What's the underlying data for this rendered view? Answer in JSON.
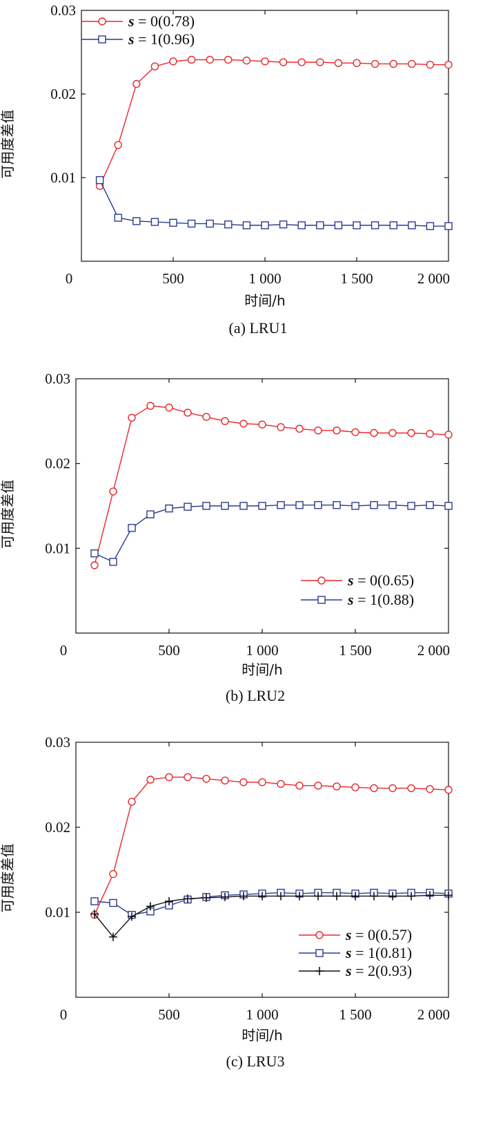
{
  "chart_data": [
    {
      "type": "line",
      "caption": "(a) LRU1",
      "xlabel": "时间/h",
      "ylabel": "可用度差值",
      "xlim": [
        0,
        2000
      ],
      "ylim": [
        0,
        0.03
      ],
      "xticks": [
        {
          "value": 0,
          "label": "0"
        },
        {
          "value": 500,
          "label": "500"
        },
        {
          "value": 1000,
          "label": "1 000"
        },
        {
          "value": 1500,
          "label": "1 500"
        },
        {
          "value": 2000,
          "label": "2 000"
        }
      ],
      "yticks": [
        {
          "value": 0.01,
          "label": "0.01"
        },
        {
          "value": 0.02,
          "label": "0.02"
        },
        {
          "value": 0.03,
          "label": "0.03"
        }
      ],
      "legend_position": "top-left",
      "grid": false,
      "x": [
        100,
        200,
        300,
        400,
        500,
        600,
        700,
        800,
        900,
        1000,
        1100,
        1200,
        1300,
        1400,
        1500,
        1600,
        1700,
        1800,
        1900,
        2000
      ],
      "series": [
        {
          "name": "s = 0(0.78)",
          "var": "s",
          "eq": " = 0(0.78)",
          "color": "#e8262a",
          "marker": "circle",
          "values": [
            0.009,
            0.0139,
            0.0212,
            0.0233,
            0.0239,
            0.0241,
            0.0241,
            0.0241,
            0.024,
            0.0239,
            0.0238,
            0.0238,
            0.0238,
            0.0237,
            0.0237,
            0.0236,
            0.0236,
            0.0236,
            0.0235,
            0.0235
          ]
        },
        {
          "name": "s = 1(0.96)",
          "var": "s",
          "eq": " = 1(0.96)",
          "color": "#2b3a8f",
          "marker": "square",
          "values": [
            0.0097,
            0.0052,
            0.0048,
            0.0047,
            0.0046,
            0.0045,
            0.0045,
            0.0044,
            0.0043,
            0.0043,
            0.0044,
            0.0043,
            0.0043,
            0.0043,
            0.0043,
            0.0043,
            0.0043,
            0.0043,
            0.0042,
            0.0042
          ]
        }
      ]
    },
    {
      "type": "line",
      "caption": "(b) LRU2",
      "xlabel": "时间/h",
      "ylabel": "可用度差值",
      "xlim": [
        0,
        2000
      ],
      "ylim": [
        0,
        0.03
      ],
      "xticks": [
        {
          "value": 0,
          "label": "0"
        },
        {
          "value": 500,
          "label": "500"
        },
        {
          "value": 1000,
          "label": "1 000"
        },
        {
          "value": 1500,
          "label": "1 500"
        },
        {
          "value": 2000,
          "label": "2 000"
        }
      ],
      "yticks": [
        {
          "value": 0.01,
          "label": "0.01"
        },
        {
          "value": 0.02,
          "label": "0.02"
        },
        {
          "value": 0.03,
          "label": "0.03"
        }
      ],
      "legend_position": "bottom-right",
      "grid": false,
      "x": [
        100,
        200,
        300,
        400,
        500,
        600,
        700,
        800,
        900,
        1000,
        1100,
        1200,
        1300,
        1400,
        1500,
        1600,
        1700,
        1800,
        1900,
        2000
      ],
      "series": [
        {
          "name": "s = 0(0.65)",
          "var": "s",
          "eq": " = 0(0.65)",
          "color": "#e8262a",
          "marker": "circle",
          "values": [
            0.008,
            0.0167,
            0.0254,
            0.0268,
            0.0266,
            0.026,
            0.0255,
            0.025,
            0.0247,
            0.0246,
            0.0243,
            0.0241,
            0.0239,
            0.0239,
            0.0237,
            0.0236,
            0.0236,
            0.0236,
            0.0235,
            0.0234
          ]
        },
        {
          "name": "s = 1(0.88)",
          "var": "s",
          "eq": " = 1(0.88)",
          "color": "#2b3a8f",
          "marker": "square",
          "values": [
            0.0094,
            0.0084,
            0.0124,
            0.014,
            0.0147,
            0.0149,
            0.015,
            0.015,
            0.015,
            0.015,
            0.0151,
            0.0151,
            0.0151,
            0.0151,
            0.015,
            0.0151,
            0.0151,
            0.015,
            0.0151,
            0.015
          ]
        }
      ]
    },
    {
      "type": "line",
      "caption": "(c) LRU3",
      "xlabel": "时间/h",
      "ylabel": "可用度差值",
      "xlim": [
        0,
        2000
      ],
      "ylim": [
        0,
        0.03
      ],
      "xticks": [
        {
          "value": 0,
          "label": "0"
        },
        {
          "value": 500,
          "label": "500"
        },
        {
          "value": 1000,
          "label": "1 000"
        },
        {
          "value": 1500,
          "label": "1 500"
        },
        {
          "value": 2000,
          "label": "2 000"
        }
      ],
      "yticks": [
        {
          "value": 0.01,
          "label": "0.01"
        },
        {
          "value": 0.02,
          "label": "0.02"
        },
        {
          "value": 0.03,
          "label": "0.03"
        }
      ],
      "legend_position": "bottom-right",
      "grid": false,
      "x": [
        100,
        200,
        300,
        400,
        500,
        600,
        700,
        800,
        900,
        1000,
        1100,
        1200,
        1300,
        1400,
        1500,
        1600,
        1700,
        1800,
        1900,
        2000
      ],
      "series": [
        {
          "name": "s = 0(0.57)",
          "var": "s",
          "eq": " = 0(0.57)",
          "color": "#e8262a",
          "marker": "circle",
          "values": [
            0.0097,
            0.0145,
            0.023,
            0.0256,
            0.0259,
            0.0259,
            0.0257,
            0.0255,
            0.0253,
            0.0253,
            0.0251,
            0.0249,
            0.0249,
            0.0248,
            0.0247,
            0.0246,
            0.0246,
            0.0246,
            0.0245,
            0.0244
          ]
        },
        {
          "name": "s = 1(0.81)",
          "var": "s",
          "eq": " = 1(0.81)",
          "color": "#2b3a8f",
          "marker": "square",
          "values": [
            0.0113,
            0.0111,
            0.0097,
            0.0101,
            0.0108,
            0.0115,
            0.0118,
            0.012,
            0.0121,
            0.0122,
            0.0123,
            0.0122,
            0.0123,
            0.0123,
            0.0122,
            0.0123,
            0.0122,
            0.0123,
            0.0123,
            0.0122
          ]
        },
        {
          "name": "s = 2(0.93)",
          "var": "s",
          "eq": " = 2(0.93)",
          "color": "#111111",
          "marker": "plus",
          "values": [
            0.0098,
            0.0071,
            0.0095,
            0.0107,
            0.0113,
            0.0116,
            0.0117,
            0.0118,
            0.0119,
            0.0119,
            0.0119,
            0.0119,
            0.0119,
            0.0119,
            0.0119,
            0.0119,
            0.0119,
            0.0119,
            0.012,
            0.012
          ]
        }
      ]
    }
  ]
}
